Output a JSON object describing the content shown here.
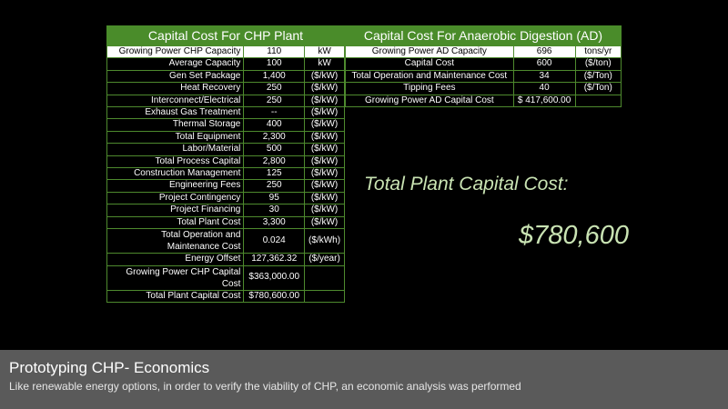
{
  "chp_table": {
    "title": "Capital Cost For CHP Plant",
    "rows": [
      {
        "label": "Growing Power CHP Capacity",
        "value": "110",
        "unit": "kW"
      },
      {
        "label": "Average Capacity",
        "value": "100",
        "unit": "kW"
      },
      {
        "label": "Gen Set Package",
        "value": "1,400",
        "unit": "($/kW)"
      },
      {
        "label": "Heat Recovery",
        "value": "250",
        "unit": "($/kW)"
      },
      {
        "label": "Interconnect/Electrical",
        "value": "250",
        "unit": "($/kW)"
      },
      {
        "label": "Exhaust Gas Treatment",
        "value": "--",
        "unit": "($/kW)"
      },
      {
        "label": "Thermal Storage",
        "value": "400",
        "unit": "($/kW)"
      },
      {
        "label": "Total Equipment",
        "value": "2,300",
        "unit": "($/kW)"
      },
      {
        "label": "Labor/Material",
        "value": "500",
        "unit": "($/kW)"
      },
      {
        "label": "Total Process Capital",
        "value": "2,800",
        "unit": "($/kW)"
      },
      {
        "label": "Construction Management",
        "value": "125",
        "unit": "($/kW)"
      },
      {
        "label": "Engineering Fees",
        "value": "250",
        "unit": "($/kW)"
      },
      {
        "label": "Project Contingency",
        "value": "95",
        "unit": "($/kW)"
      },
      {
        "label": "Project Financing",
        "value": "30",
        "unit": "($/kW)"
      },
      {
        "label": "Total Plant Cost",
        "value": "3,300",
        "unit": "($/kW)"
      },
      {
        "label": "Total Operation and Maintenance Cost",
        "value": "0.024",
        "unit": "($/kWh)"
      },
      {
        "label": "Energy Offset",
        "value": "127,362.32",
        "unit": "($/year)"
      },
      {
        "label": "Growing Power CHP Capital Cost",
        "value": "$363,000.00",
        "unit": ""
      },
      {
        "label": "Total Plant Capital Cost",
        "value": "$780,600.00",
        "unit": ""
      }
    ]
  },
  "ad_table": {
    "title": "Capital Cost For Anaerobic Digestion (AD)",
    "rows": [
      {
        "label": "Growing Power AD Capacity",
        "value": "696",
        "unit": "tons/yr"
      },
      {
        "label": "Capital Cost",
        "value": "600",
        "unit": "($/ton)"
      },
      {
        "label": "Total Operation and Maintenance Cost",
        "value": "34",
        "unit": "($/Ton)"
      },
      {
        "label": "Tipping Fees",
        "value": "40",
        "unit": "($/Ton)"
      },
      {
        "label": "Growing Power AD Capital Cost",
        "value": "$ 417,600.00",
        "unit": ""
      }
    ]
  },
  "summary": {
    "label": "Total Plant Capital Cost:",
    "value": "$780,600"
  },
  "footer": {
    "title": "Prototyping CHP- Economics",
    "subtitle": "Like renewable energy options, in order to verify the viability of CHP, an economic analysis was performed"
  },
  "colors": {
    "header_green": "#4a8c2a",
    "border_green": "#4e8a2e",
    "highlight_text": "#c9e3b3",
    "footer_bg": "#5a5a5a"
  }
}
